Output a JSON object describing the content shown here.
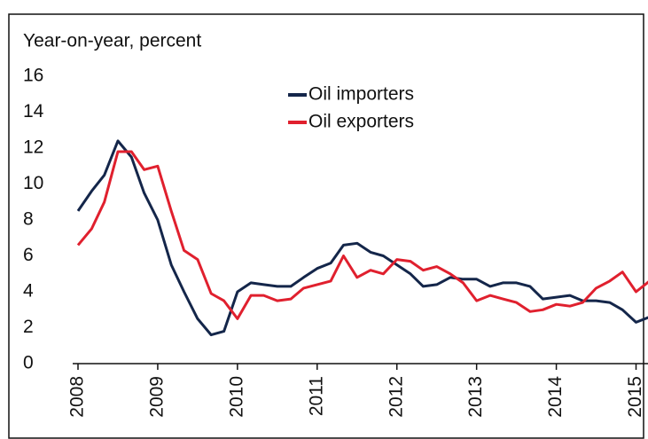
{
  "chart_data": {
    "type": "line",
    "y_label": "Year-on-year, percent",
    "x": [
      2008.0,
      2008.17,
      2008.33,
      2008.5,
      2008.67,
      2008.83,
      2009.0,
      2009.17,
      2009.33,
      2009.5,
      2009.67,
      2009.83,
      2010.0,
      2010.17,
      2010.33,
      2010.5,
      2010.67,
      2010.83,
      2011.0,
      2011.17,
      2011.33,
      2011.5,
      2011.67,
      2011.83,
      2012.0,
      2012.17,
      2012.33,
      2012.5,
      2012.67,
      2012.83,
      2013.0,
      2013.17,
      2013.33,
      2013.5,
      2013.67,
      2013.83,
      2014.0,
      2014.17,
      2014.33,
      2014.5,
      2014.67,
      2014.83,
      2015.0,
      2015.17
    ],
    "series": [
      {
        "name": "Oil importers",
        "color": "#14264a",
        "values": [
          8.5,
          9.6,
          10.5,
          12.4,
          11.5,
          9.5,
          8.0,
          5.5,
          4.0,
          2.5,
          1.6,
          1.8,
          4.0,
          4.5,
          4.4,
          4.3,
          4.3,
          4.8,
          5.3,
          5.6,
          6.6,
          6.7,
          6.2,
          6.0,
          5.5,
          5.0,
          4.3,
          4.4,
          4.8,
          4.7,
          4.7,
          4.3,
          4.5,
          4.5,
          4.3,
          3.6,
          3.7,
          3.8,
          3.5,
          3.5,
          3.4,
          3.0,
          2.3,
          2.6
        ]
      },
      {
        "name": "Oil exporters",
        "color": "#e0202e",
        "values": [
          6.6,
          7.5,
          9.0,
          11.8,
          11.8,
          10.8,
          11.0,
          8.5,
          6.3,
          5.8,
          3.9,
          3.5,
          2.5,
          3.8,
          3.8,
          3.5,
          3.6,
          4.2,
          4.4,
          4.6,
          6.0,
          4.8,
          5.2,
          5.0,
          5.8,
          5.7,
          5.2,
          5.4,
          5.0,
          4.5,
          3.5,
          3.8,
          3.6,
          3.4,
          2.9,
          3.0,
          3.3,
          3.2,
          3.4,
          4.2,
          4.6,
          5.1,
          4.0,
          4.6
        ]
      }
    ],
    "xlim": [
      2008,
      2015.15
    ],
    "xticks": [
      2008,
      2009,
      2010,
      2011,
      2012,
      2013,
      2014,
      2015
    ],
    "ylim": [
      0,
      16
    ],
    "yticks": [
      0,
      2,
      4,
      6,
      8,
      10,
      12,
      14,
      16
    ],
    "grid": false,
    "legend": "top"
  }
}
